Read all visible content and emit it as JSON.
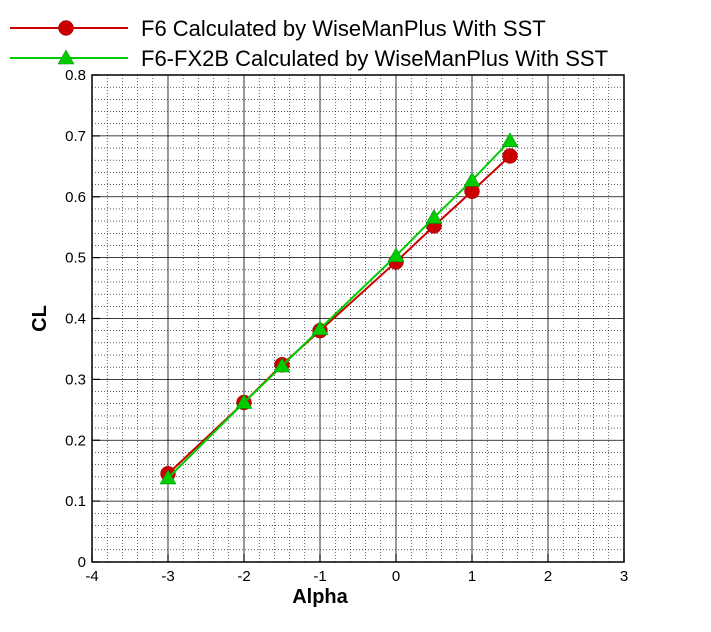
{
  "chart_data": {
    "type": "line",
    "xlabel": "Alpha",
    "ylabel": "CL",
    "xlim": [
      -4,
      3
    ],
    "ylim": [
      0,
      0.8
    ],
    "x_ticks": [
      -4,
      -3,
      -2,
      -1,
      0,
      1,
      2,
      3
    ],
    "y_ticks": [
      0,
      0.1,
      0.2,
      0.3,
      0.4,
      0.5,
      0.6,
      0.7,
      0.8
    ],
    "x_tick_labels": [
      "-4",
      "-3",
      "-2",
      "-1",
      "0",
      "1",
      "2",
      "3"
    ],
    "y_tick_labels": [
      "0",
      "0.1",
      "0.2",
      "0.3",
      "0.4",
      "0.5",
      "0.6",
      "0.7",
      "0.8"
    ],
    "grid": true,
    "minor_grid": true,
    "legend_position": "top",
    "series": [
      {
        "name": "F6 Calculated by WiseManPlus With SST",
        "color": "#cc0000",
        "marker": "circle",
        "x": [
          -3,
          -2,
          -1.5,
          -1,
          0,
          0.5,
          1,
          1.5
        ],
        "y": [
          0.145,
          0.262,
          0.324,
          0.38,
          0.493,
          0.552,
          0.609,
          0.667
        ]
      },
      {
        "name": "F6-FX2B Calculated by WiseManPlus With SST",
        "color": "#00cc00",
        "marker": "triangle",
        "x": [
          -3,
          -2,
          -1.5,
          -1,
          0,
          0.5,
          1,
          1.5
        ],
        "y": [
          0.138,
          0.262,
          0.322,
          0.383,
          0.503,
          0.566,
          0.627,
          0.692
        ]
      }
    ]
  }
}
